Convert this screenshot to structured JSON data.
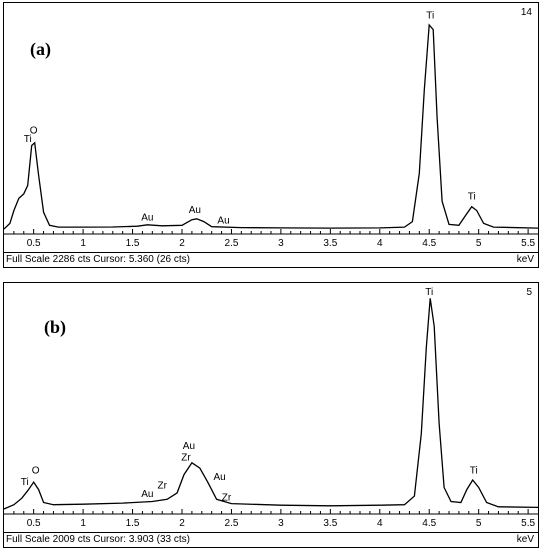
{
  "chart_data": [
    {
      "type": "line",
      "panel_label": "(a)",
      "corner_number": "14",
      "xlabel": "keV",
      "xlim": [
        0.2,
        5.6
      ],
      "ticks": [
        "0.5",
        "1",
        "1.5",
        "2",
        "2.5",
        "3",
        "3.5",
        "4",
        "4.5",
        "5",
        "5.5"
      ],
      "tick_values": [
        0.5,
        1,
        1.5,
        2,
        2.5,
        3,
        3.5,
        4,
        4.5,
        5,
        5.5
      ],
      "status_text": "Full Scale 2286 cts Cursor: 5.360  (26 cts)",
      "ylim": [
        0,
        2286
      ],
      "spectrum": [
        [
          0.2,
          0
        ],
        [
          0.26,
          60
        ],
        [
          0.3,
          200
        ],
        [
          0.35,
          330
        ],
        [
          0.4,
          380
        ],
        [
          0.44,
          470
        ],
        [
          0.48,
          900
        ],
        [
          0.51,
          930
        ],
        [
          0.55,
          580
        ],
        [
          0.6,
          180
        ],
        [
          0.66,
          40
        ],
        [
          0.75,
          20
        ],
        [
          1.0,
          20
        ],
        [
          1.3,
          22
        ],
        [
          1.55,
          30
        ],
        [
          1.65,
          45
        ],
        [
          1.8,
          35
        ],
        [
          2.0,
          40
        ],
        [
          2.1,
          100
        ],
        [
          2.15,
          110
        ],
        [
          2.22,
          80
        ],
        [
          2.3,
          25
        ],
        [
          2.6,
          15
        ],
        [
          3.0,
          12
        ],
        [
          3.5,
          10
        ],
        [
          4.0,
          12
        ],
        [
          4.25,
          20
        ],
        [
          4.33,
          80
        ],
        [
          4.4,
          600
        ],
        [
          4.45,
          1500
        ],
        [
          4.5,
          2200
        ],
        [
          4.54,
          2150
        ],
        [
          4.58,
          1200
        ],
        [
          4.63,
          300
        ],
        [
          4.7,
          50
        ],
        [
          4.8,
          40
        ],
        [
          4.87,
          150
        ],
        [
          4.93,
          240
        ],
        [
          4.98,
          200
        ],
        [
          5.05,
          60
        ],
        [
          5.15,
          20
        ],
        [
          5.6,
          10
        ]
      ],
      "peak_labels": [
        {
          "text": "O",
          "x": 0.5,
          "y": 1030
        },
        {
          "text": "Ti",
          "x": 0.44,
          "y": 940
        },
        {
          "text": "Au",
          "x": 1.65,
          "y": 90
        },
        {
          "text": "Au",
          "x": 2.13,
          "y": 170
        },
        {
          "text": "Au",
          "x": 2.42,
          "y": 60
        },
        {
          "text": "Ti",
          "x": 4.51,
          "y": 2270
        },
        {
          "text": "Ti",
          "x": 4.93,
          "y": 320
        }
      ]
    },
    {
      "type": "line",
      "panel_label": "(b)",
      "corner_number": "5",
      "xlabel": "keV",
      "xlim": [
        0.2,
        5.6
      ],
      "ticks": [
        "0.5",
        "1",
        "1.5",
        "2",
        "2.5",
        "3",
        "3.5",
        "4",
        "4.5",
        "5",
        "5.5"
      ],
      "tick_values": [
        0.5,
        1,
        1.5,
        2,
        2.5,
        3,
        3.5,
        4,
        4.5,
        5,
        5.5
      ],
      "status_text": "Full Scale 2009 cts Cursor: 3.903  (33 cts)",
      "ylim": [
        0,
        2009
      ],
      "spectrum": [
        [
          0.2,
          0
        ],
        [
          0.3,
          40
        ],
        [
          0.38,
          100
        ],
        [
          0.44,
          170
        ],
        [
          0.5,
          250
        ],
        [
          0.55,
          180
        ],
        [
          0.6,
          60
        ],
        [
          0.7,
          40
        ],
        [
          1.0,
          45
        ],
        [
          1.4,
          55
        ],
        [
          1.7,
          70
        ],
        [
          1.85,
          90
        ],
        [
          1.95,
          150
        ],
        [
          2.02,
          320
        ],
        [
          2.1,
          430
        ],
        [
          2.18,
          380
        ],
        [
          2.26,
          250
        ],
        [
          2.35,
          90
        ],
        [
          2.5,
          50
        ],
        [
          3.0,
          35
        ],
        [
          3.5,
          30
        ],
        [
          4.0,
          35
        ],
        [
          4.25,
          40
        ],
        [
          4.35,
          120
        ],
        [
          4.42,
          700
        ],
        [
          4.47,
          1500
        ],
        [
          4.51,
          1960
        ],
        [
          4.55,
          1700
        ],
        [
          4.6,
          800
        ],
        [
          4.65,
          200
        ],
        [
          4.72,
          70
        ],
        [
          4.82,
          60
        ],
        [
          4.88,
          180
        ],
        [
          4.94,
          270
        ],
        [
          5.0,
          200
        ],
        [
          5.08,
          60
        ],
        [
          5.2,
          20
        ],
        [
          5.6,
          15
        ]
      ],
      "peak_labels": [
        {
          "text": "O",
          "x": 0.52,
          "y": 330
        },
        {
          "text": "Ti",
          "x": 0.41,
          "y": 225
        },
        {
          "text": "Au",
          "x": 1.65,
          "y": 110
        },
        {
          "text": "Zr",
          "x": 1.8,
          "y": 190
        },
        {
          "text": "Au",
          "x": 2.07,
          "y": 560
        },
        {
          "text": "Zr",
          "x": 2.04,
          "y": 450
        },
        {
          "text": "Au",
          "x": 2.38,
          "y": 270
        },
        {
          "text": "Zr",
          "x": 2.45,
          "y": 80
        },
        {
          "text": "Ti",
          "x": 4.5,
          "y": 1990
        },
        {
          "text": "Ti",
          "x": 4.95,
          "y": 330
        }
      ]
    }
  ]
}
